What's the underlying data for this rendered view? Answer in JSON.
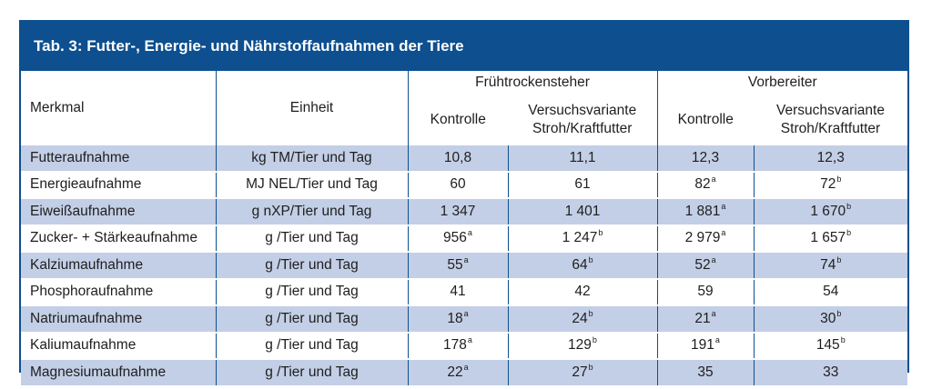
{
  "title": "Tab. 3: Futter-, Energie- und Nährstoffaufnahmen der Tiere",
  "headers": {
    "merkmal": "Merkmal",
    "einheit": "Einheit",
    "group1": "Frühtrockensteher",
    "group2": "Vorbereiter",
    "kontrolle": "Kontrolle",
    "versuch_line1": "Versuchsvariante",
    "versuch_line2": "Stroh/Kraftfutter"
  },
  "rows": [
    {
      "merkmal": "Futteraufnahme",
      "einheit": "kg TM/Tier und Tag",
      "c": [
        {
          "v": "10,8",
          "s": ""
        },
        {
          "v": "11,1",
          "s": ""
        },
        {
          "v": "12,3",
          "s": ""
        },
        {
          "v": "12,3",
          "s": ""
        }
      ]
    },
    {
      "merkmal": "Energieaufnahme",
      "einheit": "MJ NEL/Tier und Tag",
      "c": [
        {
          "v": "60",
          "s": ""
        },
        {
          "v": "61",
          "s": ""
        },
        {
          "v": "82",
          "s": "a"
        },
        {
          "v": "72",
          "s": "b"
        }
      ]
    },
    {
      "merkmal": "Eiweißaufnahme",
      "einheit": "g nXP/Tier und Tag",
      "c": [
        {
          "v": "1 347",
          "s": ""
        },
        {
          "v": "1 401",
          "s": ""
        },
        {
          "v": "1 881",
          "s": "a"
        },
        {
          "v": "1 670",
          "s": "b"
        }
      ]
    },
    {
      "merkmal": "Zucker- + Stärkeaufnahme",
      "einheit": "g /Tier und Tag",
      "c": [
        {
          "v": "956",
          "s": "a"
        },
        {
          "v": "1 247",
          "s": "b"
        },
        {
          "v": "2 979",
          "s": "a"
        },
        {
          "v": "1 657",
          "s": "b"
        }
      ]
    },
    {
      "merkmal": "Kalziumaufnahme",
      "einheit": "g /Tier und Tag",
      "c": [
        {
          "v": "55",
          "s": "a"
        },
        {
          "v": "64",
          "s": "b"
        },
        {
          "v": "52",
          "s": "a"
        },
        {
          "v": "74",
          "s": "b"
        }
      ]
    },
    {
      "merkmal": "Phosphoraufnahme",
      "einheit": "g /Tier und Tag",
      "c": [
        {
          "v": "41",
          "s": ""
        },
        {
          "v": "42",
          "s": ""
        },
        {
          "v": "59",
          "s": ""
        },
        {
          "v": "54",
          "s": ""
        }
      ]
    },
    {
      "merkmal": "Natriumaufnahme",
      "einheit": "g /Tier und Tag",
      "c": [
        {
          "v": "18",
          "s": "a"
        },
        {
          "v": "24",
          "s": "b"
        },
        {
          "v": "21",
          "s": "a"
        },
        {
          "v": "30",
          "s": "b"
        }
      ]
    },
    {
      "merkmal": "Kaliumaufnahme",
      "einheit": "g /Tier und Tag",
      "c": [
        {
          "v": "178",
          "s": "a"
        },
        {
          "v": "129",
          "s": "b"
        },
        {
          "v": "191",
          "s": "a"
        },
        {
          "v": "145",
          "s": "b"
        }
      ]
    },
    {
      "merkmal": "Magnesiumaufnahme",
      "einheit": "g /Tier und Tag",
      "c": [
        {
          "v": "22",
          "s": "a"
        },
        {
          "v": "27",
          "s": "b"
        },
        {
          "v": "35",
          "s": ""
        },
        {
          "v": "33",
          "s": ""
        }
      ]
    }
  ]
}
